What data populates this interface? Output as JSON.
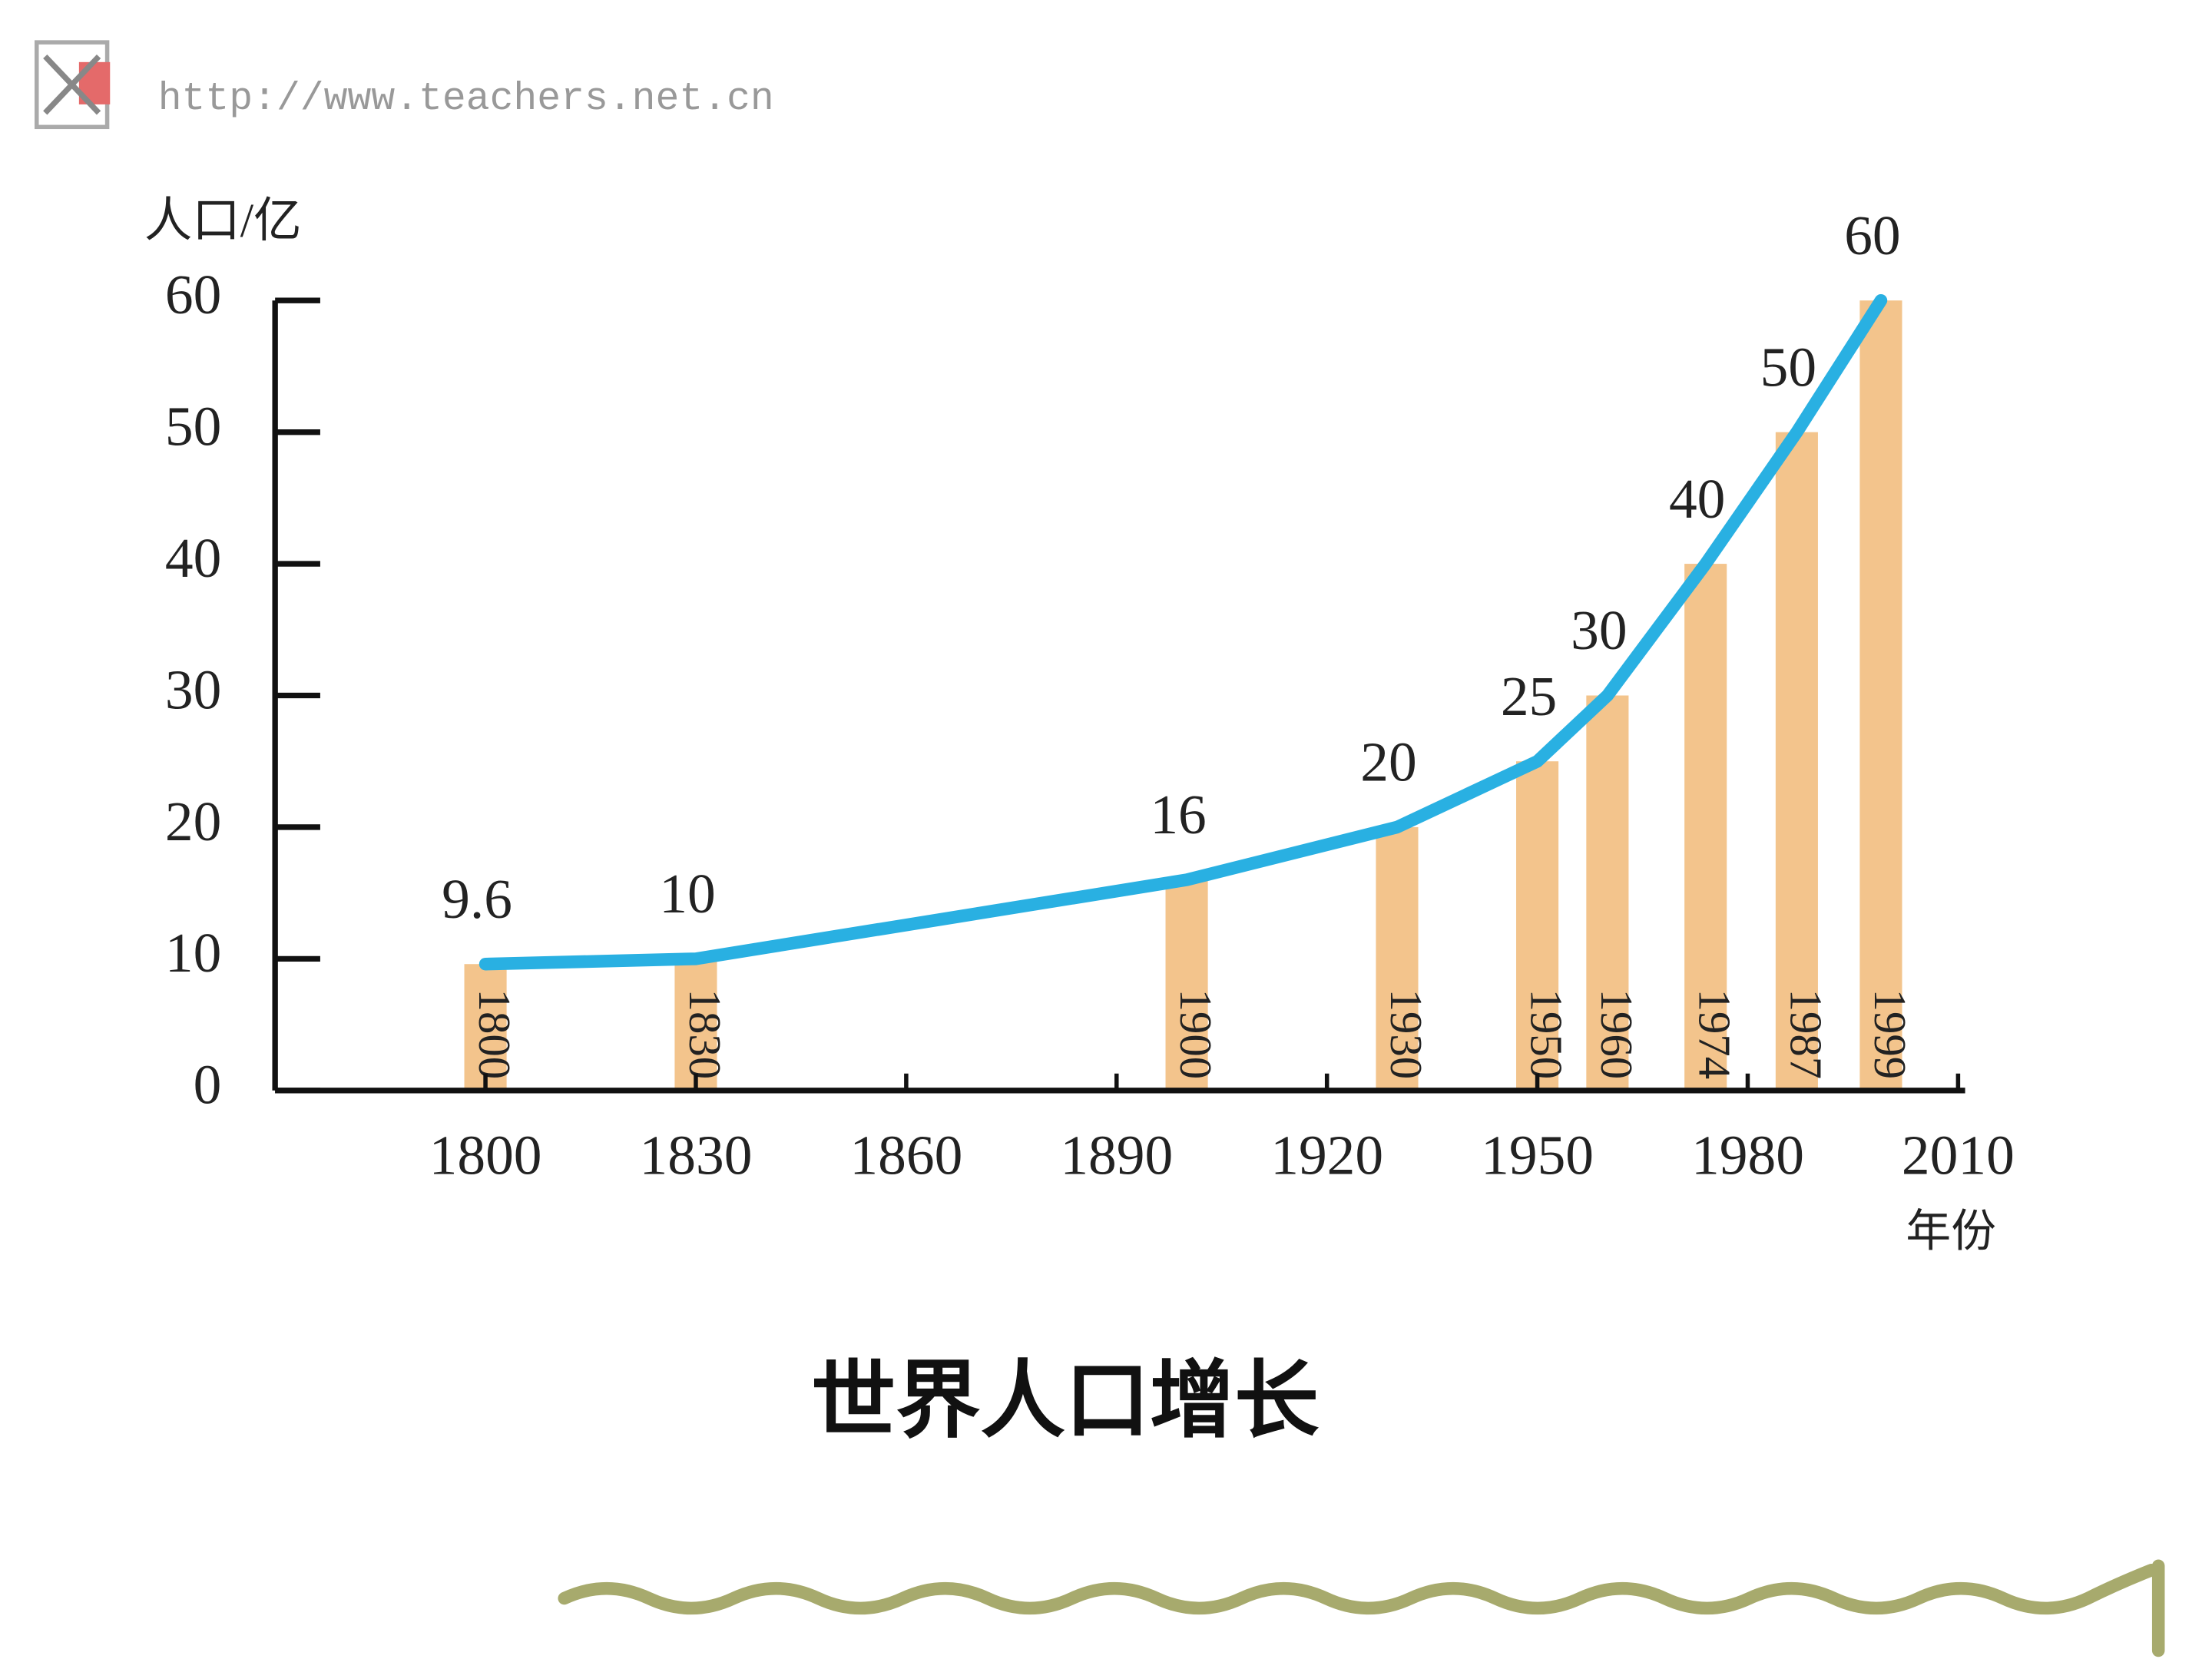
{
  "header": {
    "url": "http://www.teachers.net.cn"
  },
  "chart_data": {
    "type": "bar-line",
    "title": "世界人口增长",
    "y_label": "人口/亿",
    "x_label": "年份",
    "x": [
      1800,
      1830,
      1900,
      1930,
      1950,
      1960,
      1974,
      1987,
      1999
    ],
    "values": [
      9.6,
      10,
      16,
      20,
      25,
      30,
      40,
      50,
      60
    ],
    "bar_color": "#f3c48c",
    "line_color": "#29b0e2",
    "xlim": [
      1770,
      2010
    ],
    "xticks": [
      1800,
      1830,
      1860,
      1890,
      1920,
      1950,
      1980,
      2010
    ],
    "ylim": [
      0,
      60
    ],
    "yticks": [
      0,
      10,
      20,
      30,
      40,
      50,
      60
    ]
  }
}
